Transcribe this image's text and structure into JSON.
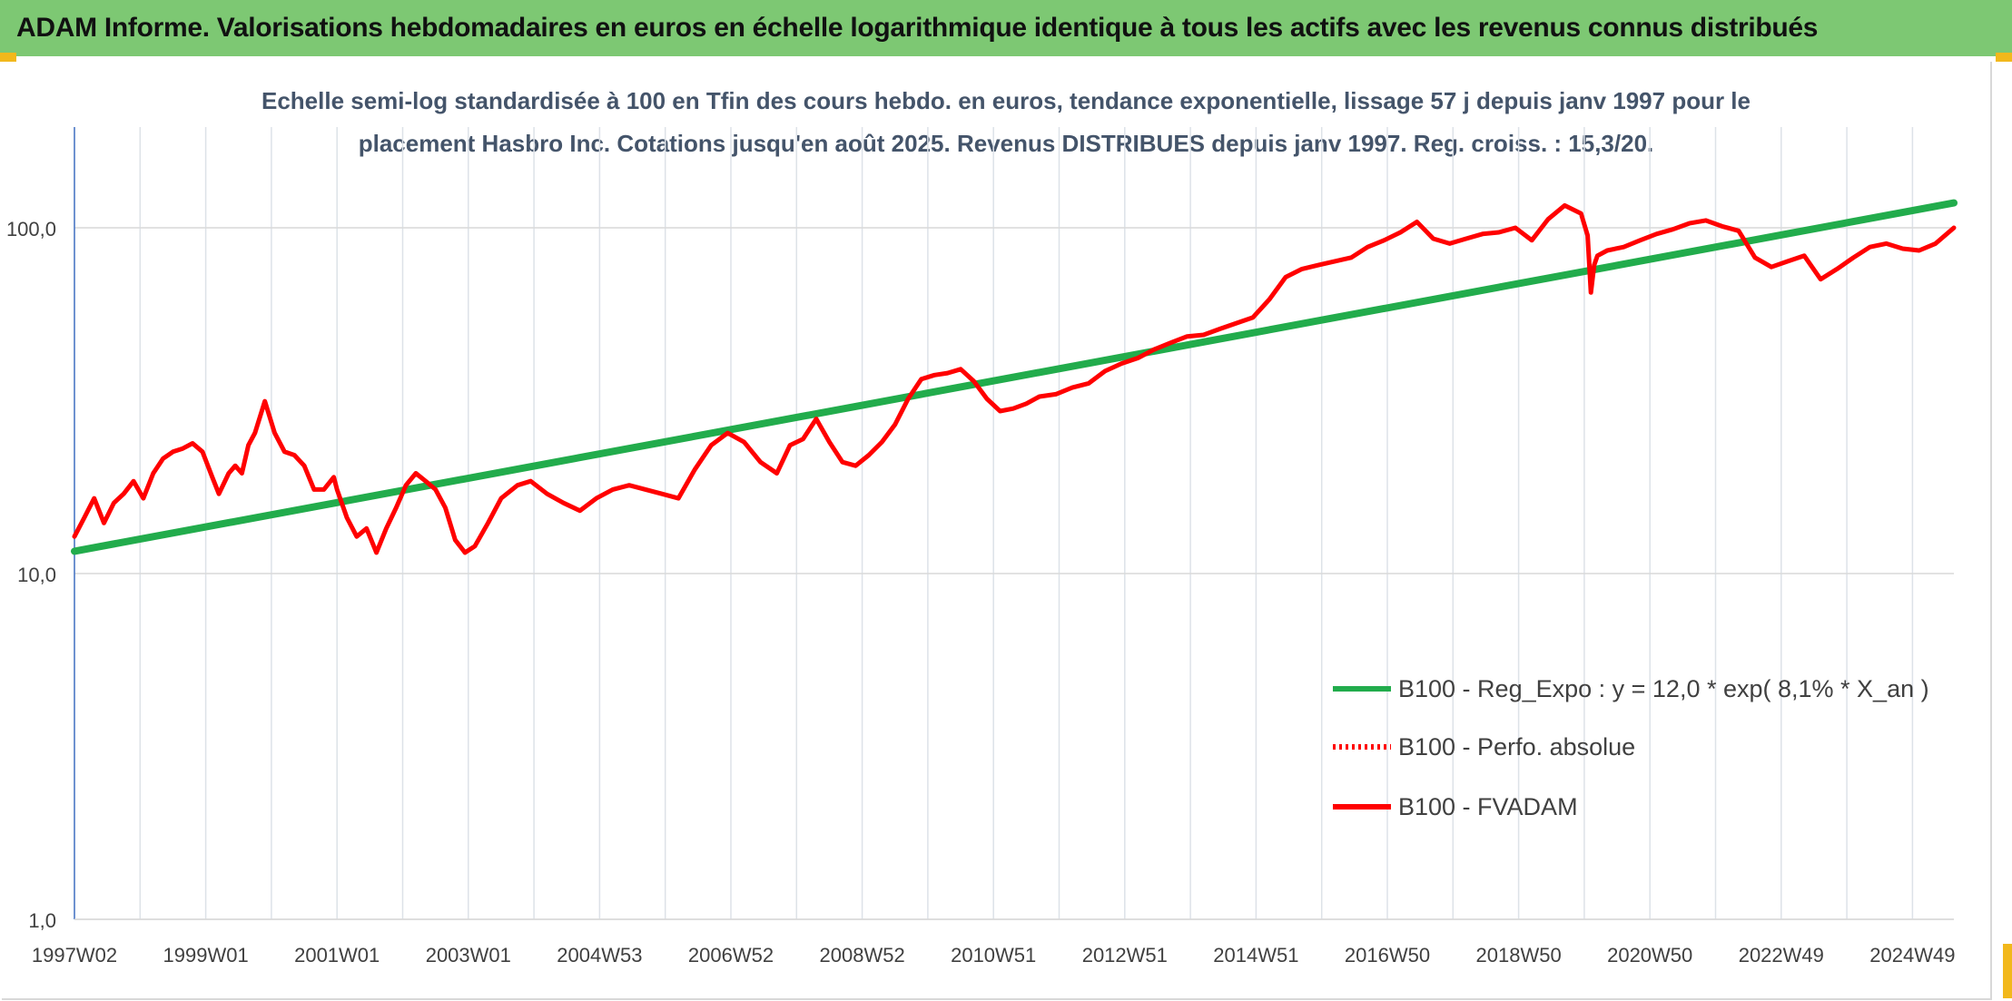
{
  "header": {
    "title": "ADAM Informe. Valorisations hebdomadaires en euros en échelle logarithmique identique à tous les actifs avec les revenus connus distribués",
    "background": "#7dc873",
    "corner_color": "#f2b81c"
  },
  "chart_data": {
    "type": "line",
    "title_line1": "Echelle semi-log standardisée à 100 en Tfin des cours hebdo. en euros, tendance exponentielle, lissage 57 j depuis janv 1997 pour le",
    "title_line2": "placement Hasbro Inc. Cotations jusqu'en août 2025. Revenus DISTRIBUES depuis janv 1997. Reg. croiss. : 15,3/20.",
    "y_scale": "log",
    "ylim": [
      1,
      200
    ],
    "xlim": [
      1997.0,
      2025.63
    ],
    "y_ticks": [
      "1,0",
      "10,0",
      "100,0"
    ],
    "x_ticks": [
      "1997W02",
      "1999W01",
      "2001W01",
      "2003W01",
      "2004W53",
      "2006W52",
      "2008W52",
      "2010W51",
      "2012W51",
      "2014W51",
      "2016W50",
      "2018W50",
      "2020W50",
      "2022W49",
      "2024W49"
    ],
    "grid": "vertical and horizontal gridlines",
    "legend_position": "bottom-right",
    "series": [
      {
        "name": "B100 - Reg_Expo : y = 12,0 * exp( 8,1% *  X_an )",
        "color": "#22ac4c",
        "style": "solid",
        "x": [
          1997.0,
          2025.63
        ],
        "y": [
          11.6,
          118
        ]
      },
      {
        "name": "B100 - Perfo. absolue",
        "color": "#ff0000",
        "style": "dotted",
        "x": [],
        "y": []
      },
      {
        "name": "B100 - FVADAM",
        "color": "#ff0000",
        "style": "solid",
        "x": [
          1997.0,
          1997.15,
          1997.3,
          1997.45,
          1997.6,
          1997.75,
          1997.9,
          1998.05,
          1998.2,
          1998.35,
          1998.5,
          1998.65,
          1998.8,
          1998.95,
          1999.1,
          1999.2,
          1999.35,
          1999.45,
          1999.55,
          1999.65,
          1999.75,
          1999.9,
          2000.05,
          2000.2,
          2000.35,
          2000.5,
          2000.65,
          2000.8,
          2000.95,
          2001.0,
          2001.15,
          2001.3,
          2001.45,
          2001.6,
          2001.75,
          2001.9,
          2002.05,
          2002.2,
          2002.35,
          2002.5,
          2002.65,
          2002.8,
          2002.95,
          2003.1,
          2003.3,
          2003.5,
          2003.75,
          2003.95,
          2004.2,
          2004.45,
          2004.7,
          2004.95,
          2005.2,
          2005.45,
          2005.7,
          2005.95,
          2006.2,
          2006.45,
          2006.7,
          2006.95,
          2007.2,
          2007.45,
          2007.7,
          2007.9,
          2008.1,
          2008.3,
          2008.5,
          2008.7,
          2008.9,
          2009.1,
          2009.3,
          2009.5,
          2009.7,
          2009.9,
          2010.1,
          2010.3,
          2010.5,
          2010.7,
          2010.9,
          2011.1,
          2011.3,
          2011.5,
          2011.7,
          2011.95,
          2012.2,
          2012.45,
          2012.7,
          2012.95,
          2013.2,
          2013.45,
          2013.7,
          2013.95,
          2014.2,
          2014.45,
          2014.7,
          2014.95,
          2015.2,
          2015.45,
          2015.7,
          2015.95,
          2016.2,
          2016.45,
          2016.7,
          2016.95,
          2017.2,
          2017.45,
          2017.7,
          2017.95,
          2018.2,
          2018.45,
          2018.7,
          2018.95,
          2019.2,
          2019.45,
          2019.7,
          2019.95,
          2020.05,
          2020.1,
          2020.15,
          2020.2,
          2020.35,
          2020.6,
          2020.85,
          2021.1,
          2021.35,
          2021.6,
          2021.85,
          2022.1,
          2022.35,
          2022.6,
          2022.85,
          2023.1,
          2023.35,
          2023.6,
          2023.85,
          2024.1,
          2024.35,
          2024.6,
          2024.85,
          2025.1,
          2025.35,
          2025.63
        ],
        "y": [
          12.8,
          14.5,
          16.5,
          14.0,
          16.0,
          17.0,
          18.5,
          16.5,
          19.5,
          21.5,
          22.5,
          23.0,
          23.8,
          22.5,
          19.0,
          17.0,
          19.5,
          20.5,
          19.5,
          23.5,
          25.5,
          31.5,
          25.5,
          22.5,
          22.0,
          20.5,
          17.5,
          17.5,
          19.0,
          17.5,
          14.5,
          12.8,
          13.5,
          11.5,
          13.5,
          15.5,
          18.0,
          19.5,
          18.5,
          17.5,
          15.5,
          12.5,
          11.5,
          12.0,
          14.0,
          16.5,
          18.0,
          18.5,
          17.0,
          16.0,
          15.2,
          16.5,
          17.5,
          18.0,
          17.5,
          17.0,
          16.5,
          20.0,
          23.5,
          25.5,
          24.0,
          21.0,
          19.5,
          23.5,
          24.5,
          28.0,
          24.0,
          21.0,
          20.5,
          22.0,
          24.0,
          27.0,
          32.0,
          36.5,
          37.5,
          38.0,
          39.0,
          36.0,
          32.0,
          29.5,
          30.0,
          31.0,
          32.5,
          33.0,
          34.5,
          35.5,
          38.5,
          40.5,
          42.0,
          44.5,
          46.5,
          48.5,
          49.0,
          51.0,
          53.0,
          55.0,
          62.0,
          72.0,
          76.0,
          78.0,
          80.0,
          82.0,
          88.0,
          92.0,
          97.0,
          104.0,
          93.0,
          90.0,
          93.0,
          96.0,
          97.0,
          100.0,
          92.0,
          106.0,
          116.0,
          110.0,
          95.0,
          65.0,
          78.0,
          83.0,
          86.0,
          88.0,
          92.0,
          96.0,
          99.0,
          103.0,
          105.0,
          101.0,
          98.0,
          82.0,
          77.0,
          80.0,
          83.0,
          71.0,
          76.0,
          82.0,
          88.0,
          90.0,
          87.0,
          86.0,
          90.0,
          100.0
        ]
      }
    ]
  }
}
